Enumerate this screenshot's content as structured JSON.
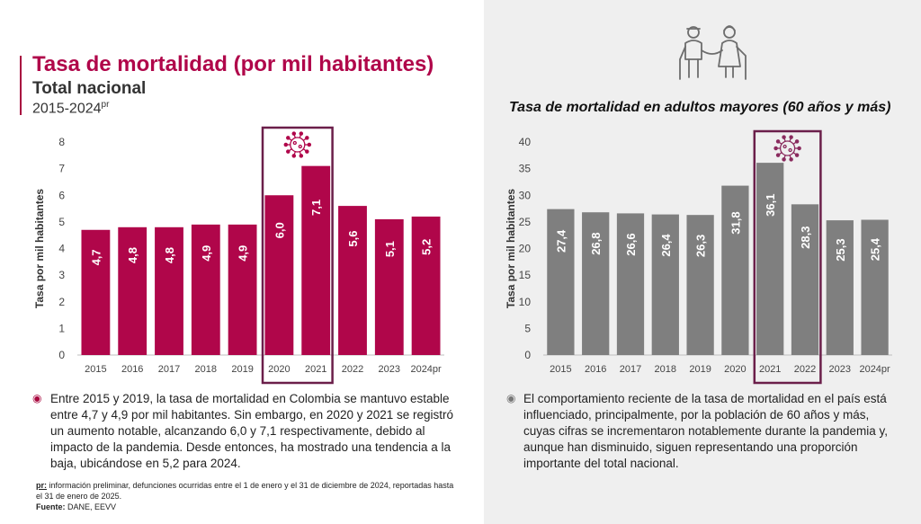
{
  "left": {
    "title": "Tasa de mortalidad (por mil habitantes)",
    "subtitle": "Total nacional",
    "years": "2015-2024",
    "years_sup": "pr",
    "note": "Entre 2015 y 2019, la tasa de mortalidad en Colombia se mantuvo estable entre 4,7 y 4,9 por mil habitantes. Sin embargo, en 2020 y 2021 se registró un aumento notable, alcanzando 6,0 y 7,1 respectivamente, debido al impacto de la pandemia. Desde entonces, ha mostrado una tendencia a la baja, ubicándose en 5,2 para 2024.",
    "footnote_pr_key": "pr:",
    "footnote_pr_text": " información preliminar, defunciones ocurridas entre el 1 de enero y el 31 de diciembre de 2024, reportadas hasta el 31 de enero de 2025.",
    "source_label": "Fuente:",
    "source_text": " DANE, EEVV"
  },
  "right": {
    "title": "Tasa de mortalidad en adultos mayores (60 años y más)",
    "note": "El comportamiento reciente de la tasa de mortalidad en el país está influenciado, principalmente, por la población de 60 años y más, cuyas cifras se incrementaron notablemente durante la pandemia y, aunque han disminuido, siguen representando una proporción importante del total nacional."
  },
  "icons": {
    "bullet": "◉",
    "virus": "virus-icon",
    "elderly": "elderly-couple-icon"
  },
  "colors": {
    "left_bar": "#b0064a",
    "right_bar": "#7f7f7f",
    "highlight_box": "#6b1f4a"
  },
  "chart_data": [
    {
      "type": "bar",
      "title": "Tasa de mortalidad (por mil habitantes)",
      "xlabel": "",
      "ylabel": "Tasa por mil habitantes",
      "categories": [
        "2015",
        "2016",
        "2017",
        "2018",
        "2019",
        "2020",
        "2021",
        "2022",
        "2023",
        "2024pr"
      ],
      "values": [
        4.7,
        4.8,
        4.8,
        4.9,
        4.9,
        6.0,
        7.1,
        5.6,
        5.1,
        5.2
      ],
      "labels": [
        "4,7",
        "4,8",
        "4,8",
        "4,9",
        "4,9",
        "6,0",
        "7,1",
        "5,6",
        "5,1",
        "5,2"
      ],
      "ylim": [
        0,
        8
      ],
      "yticks": [
        0,
        1,
        2,
        3,
        4,
        5,
        6,
        7,
        8
      ],
      "highlight": [
        "2020",
        "2021"
      ],
      "grid": false
    },
    {
      "type": "bar",
      "title": "Tasa de mortalidad en adultos mayores (60 años y más)",
      "xlabel": "",
      "ylabel": "Tasa por mil habitantes",
      "categories": [
        "2015",
        "2016",
        "2017",
        "2018",
        "2019",
        "2020",
        "2021",
        "2022",
        "2023",
        "2024pr"
      ],
      "values": [
        27.4,
        26.8,
        26.6,
        26.4,
        26.3,
        31.8,
        36.1,
        28.3,
        25.3,
        25.4
      ],
      "labels": [
        "27,4",
        "26,8",
        "26,6",
        "26,4",
        "26,3",
        "31,8",
        "36,1",
        "28,3",
        "25,3",
        "25,4"
      ],
      "ylim": [
        0,
        40
      ],
      "yticks": [
        0,
        5,
        10,
        15,
        20,
        25,
        30,
        35,
        40
      ],
      "highlight": [
        "2021",
        "2022"
      ],
      "grid": false
    }
  ]
}
